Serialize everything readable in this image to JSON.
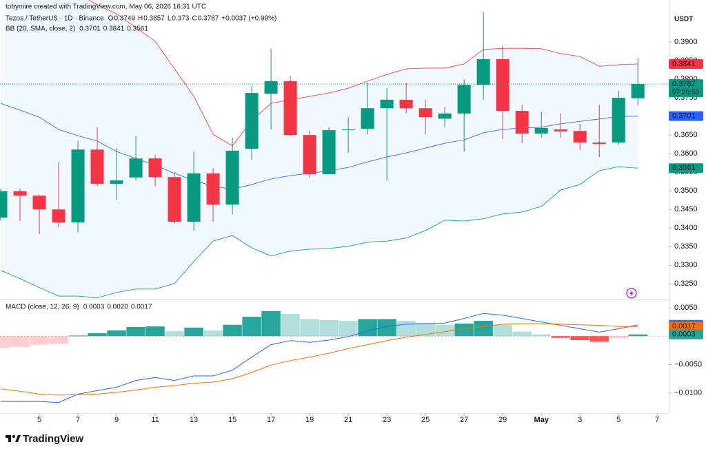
{
  "header": {
    "credit": "tobymire created with TradingView.com, May 06, 2026 16:31 UTC",
    "symbol": "Tezos / TetherUS · 1D · Binance",
    "ohlc_letters": [
      "O",
      "H",
      "L",
      "C"
    ],
    "change": "+0.0037 (+0.99%)"
  },
  "footer": {
    "logo": "TradingView"
  },
  "chart_data": [
    {
      "type": "candlestick",
      "currency": "USDT",
      "countdown": "07:26:58",
      "up_color": "#089981",
      "down_color": "#f23645",
      "xlim": [
        -0.036,
        34.6
      ],
      "ylim": [
        0.3208,
        0.4013
      ],
      "xticks": [
        {
          "value": 2,
          "label": "5"
        },
        {
          "value": 4,
          "label": "7"
        },
        {
          "value": 6,
          "label": "9"
        },
        {
          "value": 8,
          "label": "11"
        },
        {
          "value": 10,
          "label": "13"
        },
        {
          "value": 12,
          "label": "15"
        },
        {
          "value": 14,
          "label": "17"
        },
        {
          "value": 16,
          "label": "19"
        },
        {
          "value": 18,
          "label": "21"
        },
        {
          "value": 20,
          "label": "23"
        },
        {
          "value": 22,
          "label": "25"
        },
        {
          "value": 24,
          "label": "27"
        },
        {
          "value": 26,
          "label": "29"
        },
        {
          "value": 28,
          "label": "May"
        },
        {
          "value": 30,
          "label": "3"
        },
        {
          "value": 32,
          "label": "5"
        },
        {
          "value": 34,
          "label": "7"
        }
      ],
      "yticks": [
        {
          "value": 0.325,
          "label": "0.3250"
        },
        {
          "value": 0.33,
          "label": "0.3300"
        },
        {
          "value": 0.335,
          "label": "0.3350"
        },
        {
          "value": 0.34,
          "label": "0.3400"
        },
        {
          "value": 0.345,
          "label": "0.3450"
        },
        {
          "value": 0.35,
          "label": "0.3500"
        },
        {
          "value": 0.355,
          "label": "0.3550"
        },
        {
          "value": 0.36,
          "label": "0.3600"
        },
        {
          "value": 0.365,
          "label": "0.3650"
        },
        {
          "value": 0.37,
          "label": "0.3700"
        },
        {
          "value": 0.375,
          "label": "0.3750"
        },
        {
          "value": 0.38,
          "label": "0.3800"
        },
        {
          "value": 0.385,
          "label": "0.3850"
        },
        {
          "value": 0.39,
          "label": "0.3900"
        }
      ],
      "grid": false,
      "open": [
        0.3428,
        0.3499,
        0.3487,
        0.345,
        0.3415,
        0.3611,
        0.3519,
        0.3536,
        0.3587,
        0.3537,
        0.3417,
        0.3547,
        0.3463,
        0.3613,
        0.3761,
        0.3795,
        0.365,
        0.3545,
        0.3663,
        0.3667,
        0.3722,
        0.3745,
        0.3722,
        0.3694,
        0.3708,
        0.3785,
        0.3854,
        0.3715,
        0.3654,
        0.3665,
        0.3661,
        0.363,
        0.363,
        0.3749
      ],
      "high": [
        0.3506,
        0.3506,
        0.349,
        0.3578,
        0.3634,
        0.3671,
        0.3615,
        0.3647,
        0.3597,
        0.355,
        0.3606,
        0.356,
        0.3643,
        0.3782,
        0.3883,
        0.3809,
        0.3661,
        0.3671,
        0.3698,
        0.3791,
        0.3776,
        0.3791,
        0.3745,
        0.3726,
        0.38,
        0.3981,
        0.3891,
        0.3732,
        0.3713,
        0.3708,
        0.368,
        0.3732,
        0.3769,
        0.3857
      ],
      "low": [
        0.342,
        0.3419,
        0.3384,
        0.3402,
        0.3388,
        0.3513,
        0.3476,
        0.3528,
        0.3513,
        0.3412,
        0.3393,
        0.3417,
        0.3437,
        0.3584,
        0.3665,
        0.3647,
        0.3536,
        0.3545,
        0.3602,
        0.3652,
        0.3528,
        0.3708,
        0.3652,
        0.3671,
        0.3606,
        0.3745,
        0.3639,
        0.3628,
        0.3643,
        0.3643,
        0.361,
        0.3591,
        0.3624,
        0.373
      ],
      "close": [
        0.3499,
        0.3487,
        0.345,
        0.3415,
        0.3611,
        0.3519,
        0.3528,
        0.3587,
        0.3537,
        0.3417,
        0.3547,
        0.3463,
        0.3608,
        0.3763,
        0.3795,
        0.365,
        0.3545,
        0.3663,
        0.3665,
        0.3722,
        0.3745,
        0.3722,
        0.3698,
        0.3708,
        0.3785,
        0.3854,
        0.3715,
        0.3654,
        0.3669,
        0.366,
        0.363,
        0.3626,
        0.375,
        0.3787
      ],
      "bb": {
        "title": "BB (20, SMA, close, 2)",
        "basis_color": "#2962ff",
        "upper_color": "#f23645",
        "lower_color": "#089981",
        "fill": "#2196f3",
        "basis": [
          0.3735,
          0.3717,
          0.3698,
          0.3665,
          0.3648,
          0.3634,
          0.3606,
          0.3587,
          0.3569,
          0.3547,
          0.3528,
          0.3513,
          0.3504,
          0.3517,
          0.3532,
          0.3541,
          0.3547,
          0.3554,
          0.3563,
          0.3578,
          0.3591,
          0.3602,
          0.3615,
          0.3628,
          0.3637,
          0.3656,
          0.3665,
          0.3669,
          0.3671,
          0.368,
          0.3687,
          0.3693,
          0.37,
          0.3701
        ],
        "upper": [
          0.408,
          0.4075,
          0.4068,
          0.4055,
          0.403,
          0.4,
          0.3976,
          0.3939,
          0.3902,
          0.3828,
          0.3754,
          0.3652,
          0.3621,
          0.3689,
          0.3735,
          0.3745,
          0.3754,
          0.3763,
          0.3776,
          0.3795,
          0.3813,
          0.3828,
          0.383,
          0.383,
          0.3841,
          0.388,
          0.3883,
          0.3883,
          0.3882,
          0.3869,
          0.3861,
          0.3835,
          0.3839,
          0.3841
        ],
        "lower": [
          0.3286,
          0.3264,
          0.324,
          0.3217,
          0.3217,
          0.3212,
          0.3227,
          0.3236,
          0.3236,
          0.3251,
          0.331,
          0.3365,
          0.338,
          0.3347,
          0.3325,
          0.3338,
          0.3343,
          0.3345,
          0.3351,
          0.3362,
          0.3365,
          0.3373,
          0.3393,
          0.3421,
          0.3419,
          0.3425,
          0.3438,
          0.3443,
          0.3458,
          0.3502,
          0.3517,
          0.3554,
          0.3565,
          0.3561
        ]
      }
    },
    {
      "type": "macd",
      "title": "MACD (close, 12, 26, 9)",
      "ylim": [
        -0.01355,
        0.00633
      ],
      "yticks": [
        {
          "value": 0.005,
          "label": "0.0050"
        },
        {
          "value": -0.005,
          "label": "−0.0050"
        },
        {
          "value": -0.01,
          "label": "−0.0100"
        }
      ],
      "histogram": {
        "last_label": "0.0003",
        "colors": [
          "#26a69a",
          "#b2dfdb",
          "#ff5252",
          "#ffcdd2"
        ],
        "values": [
          -0.0021,
          -0.0019,
          -0.0015,
          -0.0014,
          0.0001,
          0.0005,
          0.001,
          0.0016,
          0.0017,
          0.0009,
          0.0015,
          0.001,
          0.002,
          0.0034,
          0.0044,
          0.0039,
          0.003,
          0.0028,
          0.0027,
          0.003,
          0.003,
          0.0027,
          0.0023,
          0.002,
          0.0022,
          0.0027,
          0.002,
          0.0008,
          0.0003,
          -0.0003,
          -0.0007,
          -0.001,
          -0.0004,
          0.0003
        ]
      },
      "series": [
        {
          "color": "#2962ff",
          "last_label": "0.0020",
          "values": [
            -0.0115,
            -0.0115,
            -0.0115,
            -0.0117,
            -0.0102,
            -0.0096,
            -0.009,
            -0.0078,
            -0.0073,
            -0.0078,
            -0.007,
            -0.007,
            -0.006,
            -0.0037,
            -0.0015,
            -0.0008,
            -0.0011,
            -0.0007,
            -0.0001,
            0.0009,
            0.0017,
            0.0021,
            0.0022,
            0.0023,
            0.0031,
            0.004,
            0.0037,
            0.0031,
            0.0025,
            0.0019,
            0.0013,
            0.0007,
            0.0013,
            0.002
          ]
        },
        {
          "color": "#ff6d00",
          "last_label": "0.0017",
          "values": [
            -0.0093,
            -0.0097,
            -0.0102,
            -0.0104,
            -0.0103,
            -0.0102,
            -0.0099,
            -0.0095,
            -0.009,
            -0.0087,
            -0.0083,
            -0.0081,
            -0.0075,
            -0.0064,
            -0.0051,
            -0.0043,
            -0.0037,
            -0.003,
            -0.0022,
            -0.0015,
            -0.0008,
            -0.0002,
            0.0003,
            0.0008,
            0.0013,
            0.0017,
            0.0021,
            0.0022,
            0.0022,
            0.0021,
            0.002,
            0.0019,
            0.0017,
            0.0017
          ]
        }
      ]
    }
  ]
}
